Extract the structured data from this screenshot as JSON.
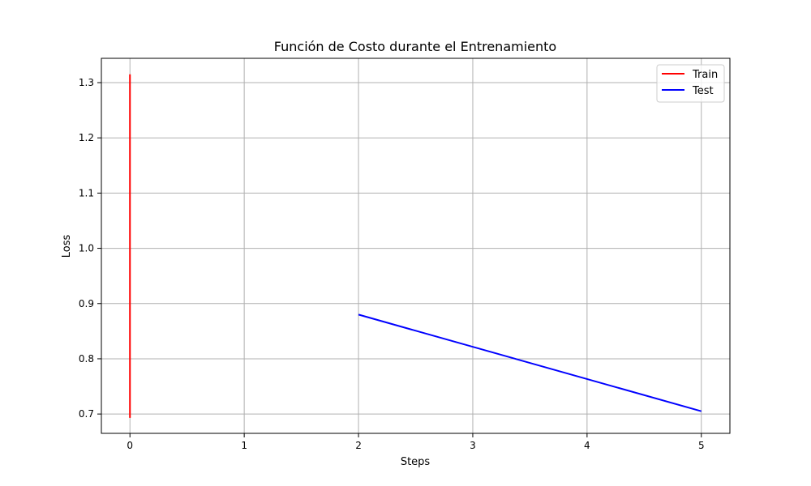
{
  "chart_data": {
    "type": "line",
    "title": "Función de Costo durante el Entrenamiento",
    "xlabel": "Steps",
    "ylabel": "Loss",
    "xlim": [
      -0.25,
      5.25
    ],
    "ylim": [
      0.665,
      1.344
    ],
    "xticks": [
      0,
      1,
      2,
      3,
      4,
      5
    ],
    "xtick_labels": [
      "0",
      "1",
      "2",
      "3",
      "4",
      "5"
    ],
    "yticks": [
      0.7,
      0.8,
      0.9,
      1.0,
      1.1,
      1.2,
      1.3
    ],
    "ytick_labels": [
      "0.7",
      "0.8",
      "0.9",
      "1.0",
      "1.1",
      "1.2",
      "1.3"
    ],
    "grid": true,
    "legend_position": "top-right",
    "series": [
      {
        "name": "Train",
        "color": "#ff0000",
        "x": [
          0,
          0
        ],
        "y": [
          1.315,
          0.693
        ]
      },
      {
        "name": "Test",
        "color": "#0000ff",
        "x": [
          2,
          5
        ],
        "y": [
          0.88,
          0.705
        ]
      }
    ]
  }
}
